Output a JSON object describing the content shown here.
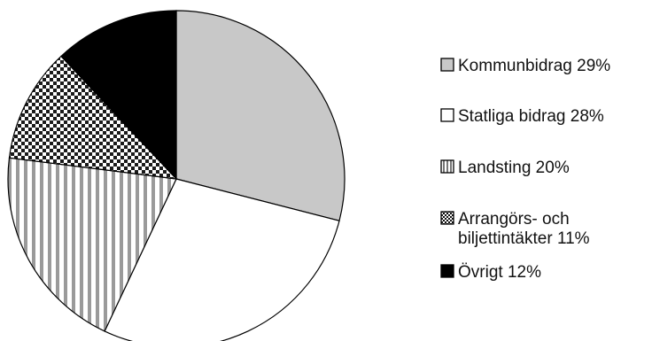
{
  "chart_data": {
    "type": "pie",
    "title": "",
    "slices": [
      {
        "label_lines": [
          "Kommunbidrag 29%"
        ],
        "value": 29,
        "pattern": "solid-light-gray"
      },
      {
        "label_lines": [
          "Statliga bidrag 28%"
        ],
        "value": 28,
        "pattern": "white"
      },
      {
        "label_lines": [
          "Landsting 20%"
        ],
        "value": 20,
        "pattern": "vertical-stripes"
      },
      {
        "label_lines": [
          "Arrangörs- och",
          "biljettintäkter 11%"
        ],
        "value": 11,
        "pattern": "checkerboard"
      },
      {
        "label_lines": [
          "Övrigt 12%"
        ],
        "value": 12,
        "pattern": "solid-black"
      }
    ],
    "start_angle": "12 o'clock",
    "direction": "clockwise",
    "legend_placement": "right"
  },
  "colors": {
    "light_gray": "#c8c8c8",
    "black": "#000000",
    "white": "#ffffff",
    "stroke": "#000000"
  }
}
